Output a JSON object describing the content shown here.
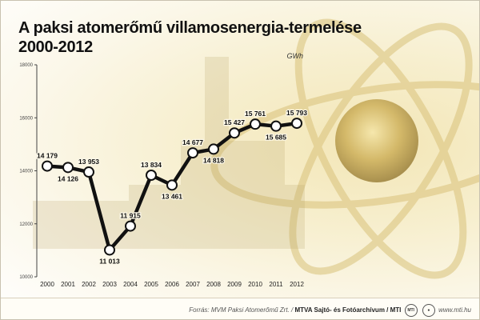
{
  "title_line1": "A paksi atomerőmű villamosenergia-termelése",
  "title_line2": "2000-2012",
  "unit_label": "GWh",
  "source_label": "Forrás: MVM Paksi Atomerőmű Zrt.",
  "source_agency": "MTVA Sajtó- és Fotóarchívum",
  "source_mti": "MTI",
  "site_label": "www.mti.hu",
  "chart_data": {
    "type": "line",
    "title": "A paksi atomerőmű villamosenergia-termelése 2000-2012",
    "ylabel": "GWh",
    "xlabel": "",
    "ylim": [
      10000,
      18000
    ],
    "yticks": [
      10000,
      12000,
      14000,
      16000,
      18000
    ],
    "ytick_labels": [
      "10000",
      "12000",
      "14000",
      "16000",
      "18000"
    ],
    "grid": false,
    "x": [
      "2000",
      "2001",
      "2002",
      "2003",
      "2004",
      "2005",
      "2006",
      "2007",
      "2008",
      "2009",
      "2010",
      "2011",
      "2012"
    ],
    "values": [
      14179,
      14126,
      13953,
      11013,
      11915,
      13834,
      13461,
      14677,
      14818,
      15427,
      15761,
      15685,
      15793
    ],
    "data_labels": [
      "14 179",
      "14 126",
      "13 953",
      "11 013",
      "11 915",
      "13 834",
      "13 461",
      "14 677",
      "14 818",
      "15 427",
      "15 761",
      "15 685",
      "15 793"
    ],
    "label_positions": [
      "above",
      "below",
      "above",
      "below",
      "above",
      "above",
      "below",
      "above",
      "below",
      "above",
      "above",
      "below",
      "above"
    ],
    "colors": {
      "line": "#111111",
      "marker_fill": "#ffffff",
      "axis": "#444444"
    }
  }
}
